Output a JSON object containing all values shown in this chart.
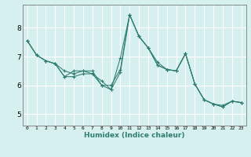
{
  "xlabel": "Humidex (Indice chaleur)",
  "bg_color": "#d6f0f0",
  "grid_color": "#ffffff",
  "line_color": "#2e7d6e",
  "xlim": [
    -0.5,
    23.5
  ],
  "ylim": [
    4.6,
    8.8
  ],
  "xticks": [
    0,
    1,
    2,
    3,
    4,
    5,
    6,
    7,
    8,
    9,
    10,
    11,
    12,
    13,
    14,
    15,
    16,
    17,
    18,
    19,
    20,
    21,
    22,
    23
  ],
  "yticks": [
    5,
    6,
    7,
    8
  ],
  "series": [
    [
      7.55,
      7.05,
      6.85,
      6.75,
      6.5,
      6.4,
      6.5,
      6.5,
      6.0,
      5.85,
      6.95,
      8.45,
      7.7,
      7.3,
      6.8,
      6.55,
      6.5,
      7.1,
      6.05,
      5.5,
      5.35,
      5.3,
      5.45,
      5.4
    ],
    [
      7.55,
      7.05,
      6.85,
      6.75,
      6.3,
      6.3,
      6.4,
      6.4,
      6.15,
      5.85,
      6.45,
      8.45,
      7.7,
      7.3,
      6.7,
      6.55,
      6.5,
      7.1,
      6.05,
      5.5,
      5.35,
      5.25,
      5.45,
      5.4
    ],
    [
      7.55,
      7.05,
      6.85,
      6.75,
      6.3,
      6.5,
      6.5,
      6.4,
      6.0,
      6.0,
      6.55,
      8.45,
      7.7,
      7.3,
      6.7,
      6.55,
      6.5,
      7.1,
      6.05,
      5.5,
      5.35,
      5.25,
      5.45,
      5.4
    ]
  ]
}
